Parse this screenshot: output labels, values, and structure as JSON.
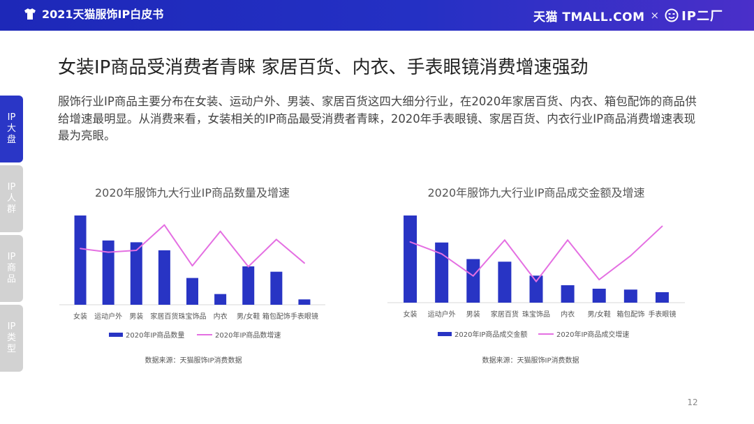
{
  "header": {
    "doc_title": "2021天猫服饰IP白皮书",
    "brand_tmall": "天猫 TMALL.COM",
    "brand_x": "×",
    "brand_ipc": "IP二厂"
  },
  "colors": {
    "accent": "#2a36c6",
    "bar": "#2834c4",
    "line": "#e46fe2",
    "tab_inactive": "#d2d2d2"
  },
  "sidebar": {
    "tabs": [
      {
        "label": "IP大盘",
        "active": true
      },
      {
        "label": "IP人群",
        "active": false
      },
      {
        "label": "IP商品",
        "active": false
      },
      {
        "label": "IP类型",
        "active": false
      }
    ]
  },
  "main": {
    "heading": "女装IP商品受消费者青睐  家居百货、内衣、手表眼镜消费增速强劲",
    "summary": "服饰行业IP商品主要分布在女装、运动户外、男装、家居百货这四大细分行业，在2020年家居百货、内衣、箱包配饰的商品供给增速最明显。从消费来看，女装相关的IP商品最受消费者青睐，2020年手表眼镜、家居百货、内衣行业IP商品消费增速表现最为亮眼。"
  },
  "chart_data": [
    {
      "type": "bar",
      "title": "2020年服饰九大行业IP商品数量及增速",
      "categories": [
        "女装",
        "运动户外",
        "男装",
        "家居百货",
        "珠宝饰品",
        "内衣",
        "男/女鞋",
        "箱包配饰",
        "手表眼镜"
      ],
      "series": [
        {
          "name": "2020年IP商品数量",
          "kind": "bar",
          "values": [
            100,
            72,
            70,
            61,
            30,
            12,
            43,
            37,
            6
          ]
        },
        {
          "name": "2020年IP商品数增速",
          "kind": "line",
          "values": [
            62,
            58,
            60,
            88,
            43,
            81,
            42,
            72,
            46
          ]
        }
      ],
      "legend_position": "bottom",
      "source": "数据来源：天猫服饰IP消费数据"
    },
    {
      "type": "bar",
      "title": "2020年服饰九大行业IP商品成交金额及增速",
      "categories": [
        "女装",
        "运动户外",
        "男装",
        "家居百货",
        "珠宝饰品",
        "内衣",
        "男/女鞋",
        "箱包配饰",
        "手表眼镜"
      ],
      "series": [
        {
          "name": "2020年IP商品成交金额",
          "kind": "bar",
          "values": [
            100,
            69,
            50,
            47,
            31,
            20,
            16,
            15,
            12
          ]
        },
        {
          "name": "2020年IP商品成交增速",
          "kind": "line",
          "values": [
            66,
            53,
            29,
            68,
            23,
            68,
            25,
            51,
            83
          ]
        }
      ],
      "legend_position": "bottom",
      "source": "数据来源：天猫服饰IP消费数据"
    }
  ],
  "footer": {
    "page_number": "12"
  }
}
